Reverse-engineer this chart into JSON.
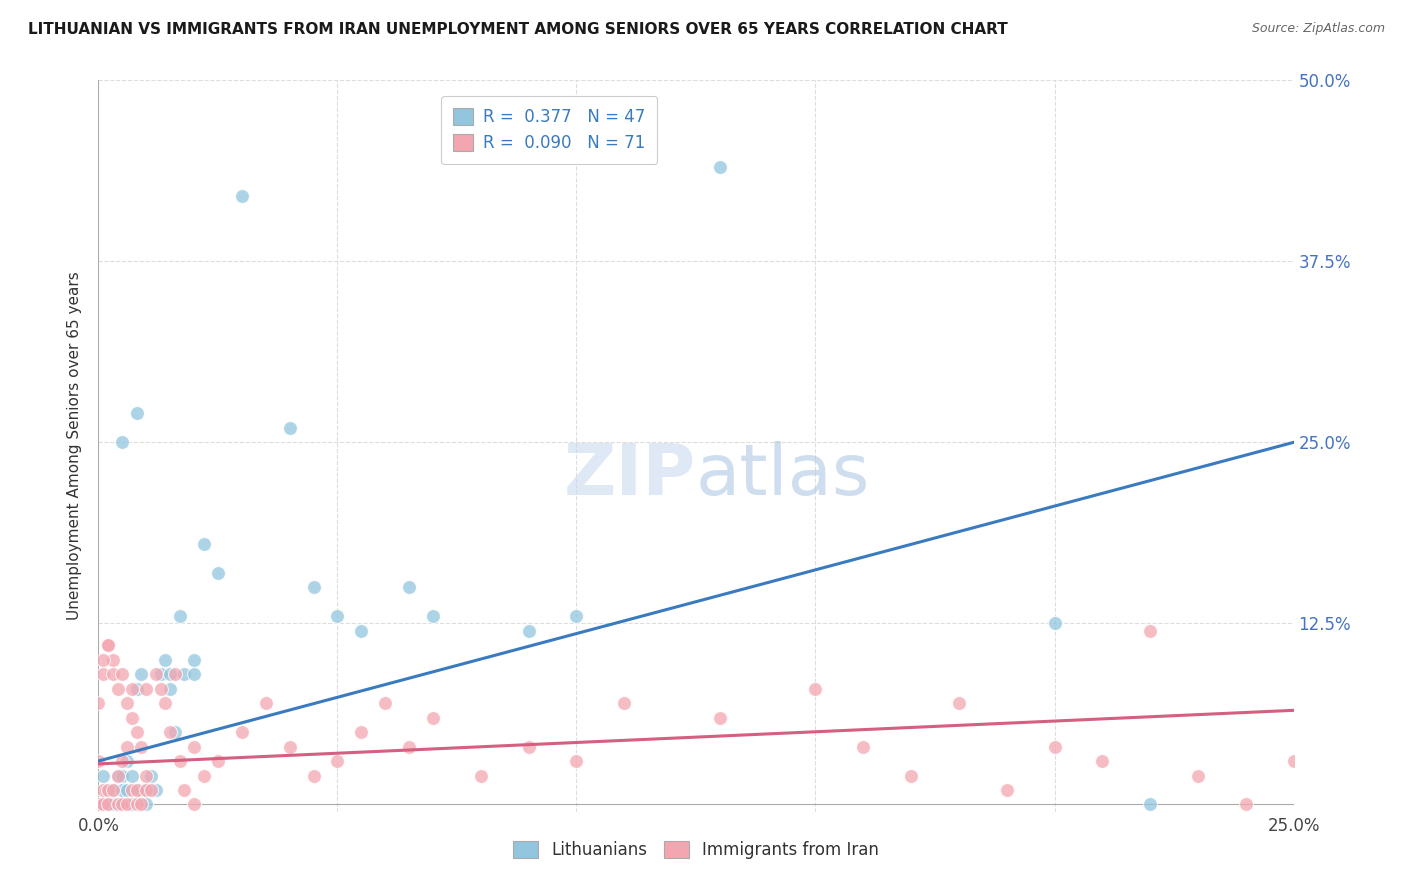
{
  "title": "LITHUANIAN VS IMMIGRANTS FROM IRAN UNEMPLOYMENT AMONG SENIORS OVER 65 YEARS CORRELATION CHART",
  "source": "Source: ZipAtlas.com",
  "ylabel": "Unemployment Among Seniors over 65 years",
  "xlim": [
    0.0,
    0.25
  ],
  "ylim": [
    -0.005,
    0.5
  ],
  "blue_R": 0.377,
  "blue_N": 47,
  "pink_R": 0.09,
  "pink_N": 71,
  "blue_color": "#92c5de",
  "pink_color": "#f4a6b0",
  "blue_line_color": "#3a7bbf",
  "pink_line_color": "#d45f80",
  "background_color": "#ffffff",
  "grid_color": "#cccccc",
  "legend_label_blue": "Lithuanians",
  "legend_label_pink": "Immigrants from Iran",
  "blue_trend_x0": 0.0,
  "blue_trend_y0": 0.03,
  "blue_trend_x1": 0.25,
  "blue_trend_y1": 0.25,
  "pink_trend_x0": 0.0,
  "pink_trend_y0": 0.028,
  "pink_trend_x1": 0.25,
  "pink_trend_y1": 0.065,
  "blue_x": [
    0.001,
    0.001,
    0.002,
    0.002,
    0.003,
    0.003,
    0.004,
    0.004,
    0.005,
    0.005,
    0.006,
    0.006,
    0.007,
    0.007,
    0.008,
    0.008,
    0.009,
    0.009,
    0.01,
    0.01,
    0.011,
    0.012,
    0.013,
    0.014,
    0.015,
    0.015,
    0.016,
    0.017,
    0.018,
    0.02,
    0.02,
    0.022,
    0.025,
    0.03,
    0.04,
    0.045,
    0.05,
    0.055,
    0.065,
    0.07,
    0.09,
    0.1,
    0.13,
    0.2,
    0.22,
    0.005,
    0.008
  ],
  "blue_y": [
    0.0,
    0.02,
    0.01,
    0.0,
    0.01,
    0.0,
    0.0,
    0.02,
    0.01,
    0.02,
    0.01,
    0.03,
    0.0,
    0.02,
    0.01,
    0.08,
    0.09,
    0.01,
    0.0,
    0.01,
    0.02,
    0.01,
    0.09,
    0.1,
    0.08,
    0.09,
    0.05,
    0.13,
    0.09,
    0.09,
    0.1,
    0.18,
    0.16,
    0.42,
    0.26,
    0.15,
    0.13,
    0.12,
    0.15,
    0.13,
    0.12,
    0.13,
    0.44,
    0.125,
    0.0,
    0.25,
    0.27
  ],
  "pink_x": [
    0.0,
    0.0,
    0.001,
    0.001,
    0.001,
    0.002,
    0.002,
    0.002,
    0.003,
    0.003,
    0.004,
    0.004,
    0.005,
    0.005,
    0.006,
    0.006,
    0.007,
    0.007,
    0.008,
    0.008,
    0.009,
    0.01,
    0.01,
    0.011,
    0.012,
    0.013,
    0.014,
    0.015,
    0.016,
    0.017,
    0.018,
    0.02,
    0.02,
    0.022,
    0.025,
    0.03,
    0.035,
    0.04,
    0.045,
    0.05,
    0.055,
    0.06,
    0.065,
    0.07,
    0.08,
    0.09,
    0.1,
    0.11,
    0.13,
    0.15,
    0.16,
    0.17,
    0.18,
    0.19,
    0.2,
    0.21,
    0.22,
    0.23,
    0.24,
    0.25,
    0.0,
    0.001,
    0.002,
    0.003,
    0.004,
    0.005,
    0.006,
    0.007,
    0.008,
    0.009,
    0.01
  ],
  "pink_y": [
    0.0,
    0.03,
    0.0,
    0.01,
    0.09,
    0.0,
    0.01,
    0.11,
    0.01,
    0.1,
    0.0,
    0.02,
    0.0,
    0.03,
    0.0,
    0.04,
    0.01,
    0.08,
    0.0,
    0.01,
    0.0,
    0.01,
    0.02,
    0.01,
    0.09,
    0.08,
    0.07,
    0.05,
    0.09,
    0.03,
    0.01,
    0.0,
    0.04,
    0.02,
    0.03,
    0.05,
    0.07,
    0.04,
    0.02,
    0.03,
    0.05,
    0.07,
    0.04,
    0.06,
    0.02,
    0.04,
    0.03,
    0.07,
    0.06,
    0.08,
    0.04,
    0.02,
    0.07,
    0.01,
    0.04,
    0.03,
    0.12,
    0.02,
    0.0,
    0.03,
    0.07,
    0.1,
    0.11,
    0.09,
    0.08,
    0.09,
    0.07,
    0.06,
    0.05,
    0.04,
    0.08
  ]
}
